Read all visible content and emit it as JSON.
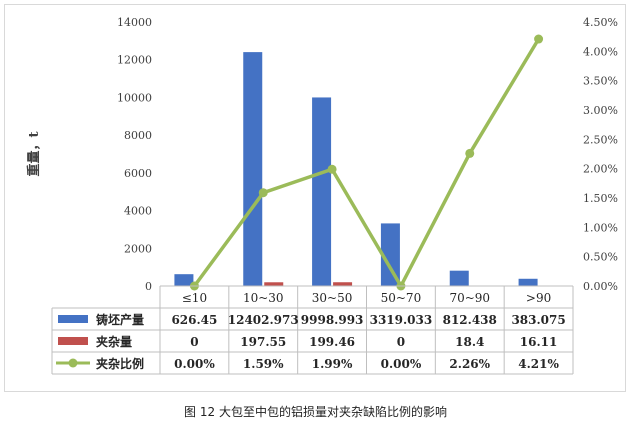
{
  "caption": "图 12 大包至中包的铝损量对夹杂缺陷比例的影响",
  "chart_data": {
    "type": "bar",
    "categories": [
      "≤10",
      "10~30",
      "30~50",
      "50~70",
      "70~90",
      ">90"
    ],
    "ylabel": "重量，t",
    "ylim": [
      0,
      14000
    ],
    "y_ticks": [
      "0",
      "2000",
      "4000",
      "6000",
      "8000",
      "10000",
      "12000",
      "14000"
    ],
    "y2lim": [
      0,
      4.5
    ],
    "y2_ticks": [
      "0.00%",
      "0.50%",
      "1.00%",
      "1.50%",
      "2.00%",
      "2.50%",
      "3.00%",
      "3.50%",
      "4.00%",
      "4.50%"
    ],
    "grid": false,
    "legend": "data-table",
    "series": [
      {
        "name": "铸坯产量",
        "type": "bar",
        "color": "#4472c4",
        "values": [
          626.45,
          12402.973,
          9998.993,
          3319.033,
          812.438,
          383.075
        ],
        "labels": [
          "626.45",
          "12402.973",
          "9998.993",
          "3319.033",
          "812.438",
          "383.075"
        ]
      },
      {
        "name": "夹杂量",
        "type": "bar",
        "color": "#c0504d",
        "values": [
          0,
          197.55,
          199.46,
          0,
          18.4,
          16.11
        ],
        "labels": [
          "0",
          "197.55",
          "199.46",
          "0",
          "18.4",
          "16.11"
        ]
      },
      {
        "name": "夹杂比例",
        "type": "line",
        "axis": "secondary",
        "color": "#9bbb59",
        "values": [
          0.0,
          1.59,
          1.99,
          0.0,
          2.26,
          4.21
        ],
        "labels": [
          "0.00%",
          "1.59%",
          "1.99%",
          "0.00%",
          "2.26%",
          "4.21%"
        ]
      }
    ]
  }
}
